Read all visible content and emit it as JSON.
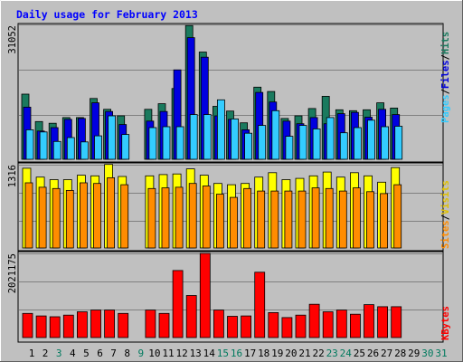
{
  "chart_data": [
    {
      "type": "bar",
      "title": "Daily usage for February 2013",
      "panel": "top",
      "max_label": "31052",
      "ylim": [
        0,
        31052
      ],
      "categories": [
        "1",
        "2",
        "3",
        "4",
        "5",
        "6",
        "7",
        "8",
        "9",
        "10",
        "11",
        "12",
        "13",
        "14",
        "15",
        "16",
        "17",
        "18",
        "19",
        "20",
        "21",
        "22",
        "23",
        "24",
        "25",
        "26",
        "27",
        "28",
        "29",
        "30",
        "31"
      ],
      "right_labels": [
        "Pages",
        "Files",
        "Hits"
      ],
      "series": [
        {
          "name": "Hits",
          "color": "#1a7a5e",
          "values": [
            15000,
            8700,
            8300,
            9600,
            9600,
            14000,
            11500,
            10000,
            null,
            11500,
            12800,
            16300,
            30800,
            24700,
            12200,
            11100,
            8400,
            16600,
            15600,
            9400,
            10000,
            11700,
            14500,
            11400,
            11200,
            11400,
            13000,
            11800,
            null,
            null,
            null
          ]
        },
        {
          "name": "Files",
          "color": "#0000e0",
          "values": [
            12000,
            6500,
            7300,
            9200,
            9400,
            13000,
            11000,
            8000,
            null,
            8800,
            11000,
            20600,
            28000,
            23500,
            10000,
            9200,
            6800,
            15400,
            13200,
            8800,
            8200,
            9600,
            8200,
            10500,
            10800,
            9700,
            11500,
            10300,
            null,
            null,
            null
          ]
        },
        {
          "name": "Pages",
          "color": "#33ccff",
          "values": [
            6800,
            6300,
            4100,
            5000,
            4000,
            5400,
            10000,
            5700,
            null,
            7300,
            7500,
            7500,
            10300,
            10300,
            13700,
            9300,
            6000,
            7800,
            11200,
            5300,
            7800,
            7000,
            9600,
            6100,
            7300,
            9000,
            7500,
            7600,
            null,
            null,
            null
          ]
        }
      ]
    },
    {
      "type": "bar",
      "panel": "middle",
      "max_label": "1316",
      "ylim": [
        0,
        1316
      ],
      "categories": [
        "1",
        "2",
        "3",
        "4",
        "5",
        "6",
        "7",
        "8",
        "9",
        "10",
        "11",
        "12",
        "13",
        "14",
        "15",
        "16",
        "17",
        "18",
        "19",
        "20",
        "21",
        "22",
        "23",
        "24",
        "25",
        "26",
        "27",
        "28",
        "29",
        "30",
        "31"
      ],
      "right_labels": [
        "Sites",
        "Visits"
      ],
      "series": [
        {
          "name": "Visits",
          "color": "#ffff00",
          "values": [
            1260,
            1120,
            1080,
            1080,
            1150,
            1140,
            1320,
            1130,
            null,
            1140,
            1160,
            1170,
            1250,
            1150,
            1020,
            1000,
            1020,
            1120,
            1190,
            1080,
            1100,
            1140,
            1200,
            1120,
            1190,
            1140,
            1040,
            1270,
            null,
            null,
            null
          ]
        },
        {
          "name": "Sites",
          "color": "#ff8c00",
          "values": [
            1030,
            960,
            940,
            910,
            1030,
            1020,
            1110,
            1000,
            null,
            940,
            950,
            960,
            1020,
            980,
            850,
            800,
            940,
            900,
            900,
            900,
            900,
            950,
            940,
            900,
            950,
            890,
            860,
            1000,
            null,
            null,
            null
          ]
        }
      ]
    },
    {
      "type": "bar",
      "panel": "bottom",
      "max_label": "2021175",
      "ylim": [
        0,
        2021175
      ],
      "categories": [
        "1",
        "2",
        "3",
        "4",
        "5",
        "6",
        "7",
        "8",
        "9",
        "10",
        "11",
        "12",
        "13",
        "14",
        "15",
        "16",
        "17",
        "18",
        "19",
        "20",
        "21",
        "22",
        "23",
        "24",
        "25",
        "26",
        "27",
        "28",
        "29",
        "30",
        "31"
      ],
      "right_labels": [
        "KBytes"
      ],
      "series": [
        {
          "name": "KBytes",
          "color": "#ff0000",
          "values": [
            580,
            520,
            500,
            540,
            620,
            660,
            660,
            580,
            null,
            660,
            580,
            1610,
            1010,
            2021,
            660,
            510,
            520,
            1570,
            600,
            480,
            540,
            800,
            620,
            660,
            560,
            790,
            740,
            740,
            null,
            null,
            null
          ]
        }
      ]
    }
  ],
  "day_colors": [
    "#000000",
    "#000000",
    "#007a5e",
    "#000000",
    "#000000",
    "#000000",
    "#000000",
    "#000000",
    "#007a5e",
    "#000000",
    "#000000",
    "#000000",
    "#000000",
    "#000000",
    "#007a5e",
    "#007a5e",
    "#000000",
    "#000000",
    "#000000",
    "#000000",
    "#000000",
    "#000000",
    "#007a5e",
    "#007a5e",
    "#000000",
    "#000000",
    "#000000",
    "#000000",
    "#000000",
    "#007a5e",
    "#007a5e"
  ],
  "label_colors": {
    "title": "#0000ff",
    "Pages": "#33ccff",
    "Files": "#0000e0",
    "Hits": "#1a7a5e",
    "Sites": "#ff8c00",
    "Visits": "#e0c000",
    "KBytes": "#ff0000",
    "separator": "#000000"
  }
}
